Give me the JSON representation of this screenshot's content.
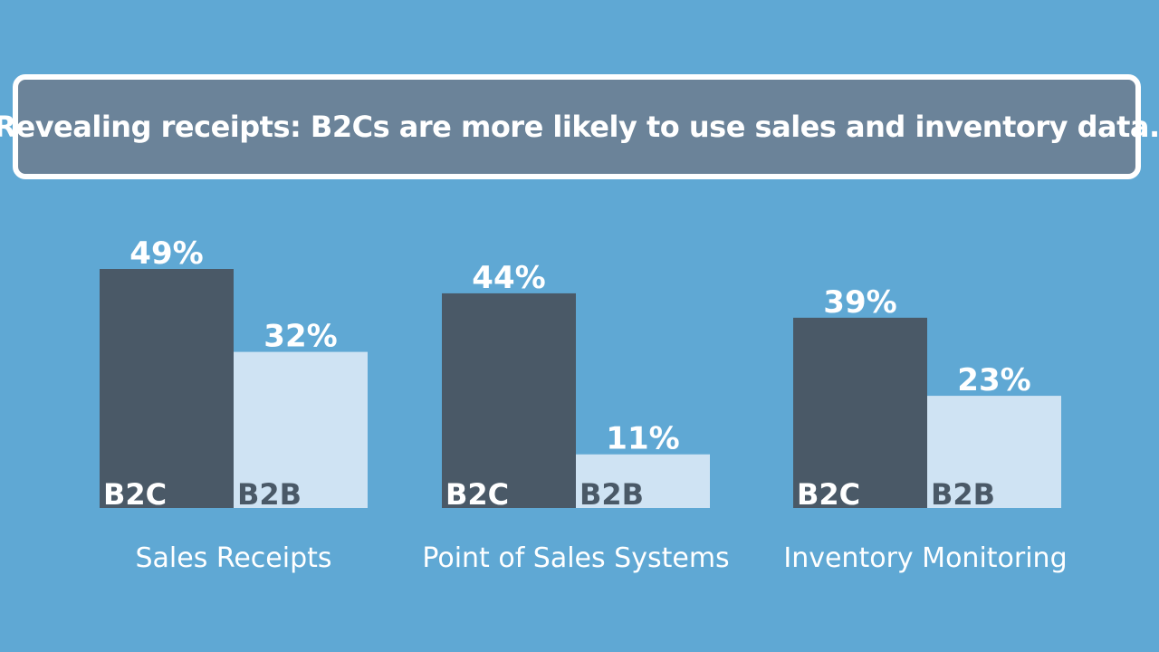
{
  "chart_data": {
    "type": "bar",
    "title": "Revealing receipts: B2Cs are more likely to use sales and inventory data.",
    "categories": [
      "Sales Receipts",
      "Point of Sales Systems",
      "Inventory Monitoring"
    ],
    "series": [
      {
        "name": "B2C",
        "values": [
          49,
          44,
          39
        ],
        "value_labels": [
          "49%",
          "44%",
          "39%"
        ]
      },
      {
        "name": "B2B",
        "values": [
          32,
          11,
          23
        ],
        "value_labels": [
          "32%",
          "11%",
          "23%"
        ]
      }
    ],
    "unit": "%",
    "ylim": [
      0,
      49
    ],
    "grid": false,
    "legend": "none",
    "colors": {
      "background": "#5fa8d4",
      "title_box": "#6b8399",
      "B2C": "#4a5967",
      "B2B": "#cfe3f3"
    }
  }
}
